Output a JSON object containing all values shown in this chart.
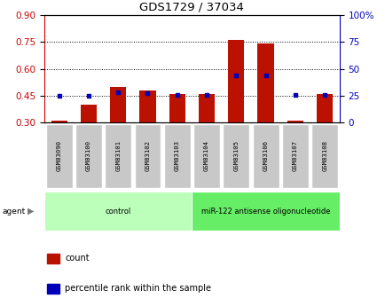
{
  "title": "GDS1729 / 37034",
  "samples": [
    "GSM83090",
    "GSM83100",
    "GSM83101",
    "GSM83102",
    "GSM83103",
    "GSM83104",
    "GSM83105",
    "GSM83106",
    "GSM83107",
    "GSM83108"
  ],
  "red_values": [
    0.31,
    0.4,
    0.5,
    0.48,
    0.46,
    0.46,
    0.76,
    0.74,
    0.31,
    0.46
  ],
  "blue_pct": [
    25,
    25,
    28,
    27,
    26,
    26,
    44,
    44,
    26,
    26
  ],
  "left_ylim": [
    0.3,
    0.9
  ],
  "right_ylim": [
    0,
    100
  ],
  "left_yticks": [
    0.3,
    0.45,
    0.6,
    0.75,
    0.9
  ],
  "right_yticks": [
    0,
    25,
    50,
    75,
    100
  ],
  "right_yticklabels": [
    "0",
    "25",
    "50",
    "75",
    "100%"
  ],
  "left_color": "#cc0000",
  "right_color": "#0000bb",
  "bar_color": "#bb1100",
  "dot_color": "#0000bb",
  "groups": [
    {
      "label": "control",
      "start": 0,
      "end": 5,
      "color": "#bbffbb"
    },
    {
      "label": "miR-122 antisense oligonucleotide",
      "start": 5,
      "end": 10,
      "color": "#66ee66"
    }
  ],
  "agent_label": "agent",
  "legend_count": "count",
  "legend_pct": "percentile rank within the sample",
  "bg_plot": "#ffffff",
  "sample_label_bg": "#c8c8c8",
  "outer_bg": "#ffffff"
}
